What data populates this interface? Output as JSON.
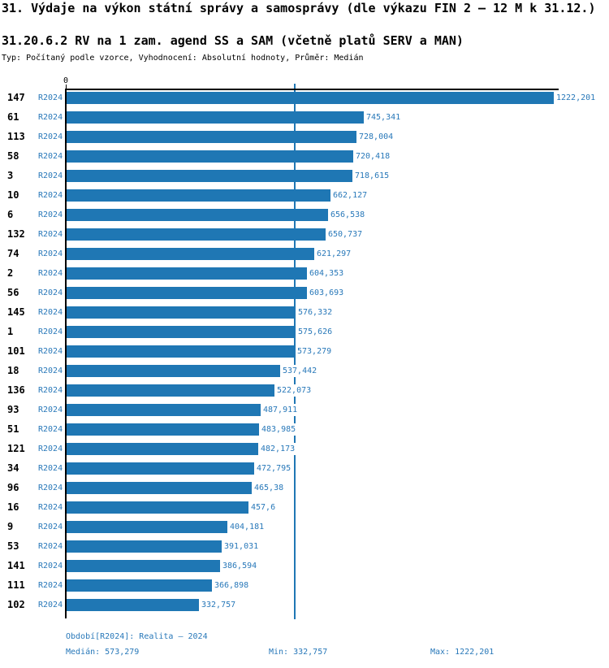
{
  "header": {
    "title": "31. Výdaje na výkon státní správy a samosprávy (dle výkazu FIN 2 – 12 M k 31.12.)",
    "subtitle": "31.20.6.2 RV na 1 zam. agend SS a SAM (včetně platů SERV a MAN)",
    "meta": "Typ: Počítaný podle vzorce, Vyhodnocení: Absolutní hodnoty, Průměr: Medián"
  },
  "chart_data": {
    "type": "bar",
    "orientation": "horizontal",
    "series_label": "R2024",
    "x_axis": {
      "zero_label": "0",
      "max": 1222.201
    },
    "median_value": 573.279,
    "legend_position": "none",
    "grid": false,
    "rows": [
      {
        "id": "147",
        "period": "R2024",
        "value": 1222.201,
        "value_label": "1222,201"
      },
      {
        "id": "61",
        "period": "R2024",
        "value": 745.341,
        "value_label": "745,341"
      },
      {
        "id": "113",
        "period": "R2024",
        "value": 728.004,
        "value_label": "728,004"
      },
      {
        "id": "58",
        "period": "R2024",
        "value": 720.418,
        "value_label": "720,418"
      },
      {
        "id": "3",
        "period": "R2024",
        "value": 718.615,
        "value_label": "718,615"
      },
      {
        "id": "10",
        "period": "R2024",
        "value": 662.127,
        "value_label": "662,127"
      },
      {
        "id": "6",
        "period": "R2024",
        "value": 656.538,
        "value_label": "656,538"
      },
      {
        "id": "132",
        "period": "R2024",
        "value": 650.737,
        "value_label": "650,737"
      },
      {
        "id": "74",
        "period": "R2024",
        "value": 621.297,
        "value_label": "621,297"
      },
      {
        "id": "2",
        "period": "R2024",
        "value": 604.353,
        "value_label": "604,353"
      },
      {
        "id": "56",
        "period": "R2024",
        "value": 603.693,
        "value_label": "603,693"
      },
      {
        "id": "145",
        "period": "R2024",
        "value": 576.332,
        "value_label": "576,332"
      },
      {
        "id": "1",
        "period": "R2024",
        "value": 575.626,
        "value_label": "575,626"
      },
      {
        "id": "101",
        "period": "R2024",
        "value": 573.279,
        "value_label": "573,279"
      },
      {
        "id": "18",
        "period": "R2024",
        "value": 537.442,
        "value_label": "537,442"
      },
      {
        "id": "136",
        "period": "R2024",
        "value": 522.073,
        "value_label": "522,073"
      },
      {
        "id": "93",
        "period": "R2024",
        "value": 487.911,
        "value_label": "487,911"
      },
      {
        "id": "51",
        "period": "R2024",
        "value": 483.985,
        "value_label": "483,985"
      },
      {
        "id": "121",
        "period": "R2024",
        "value": 482.173,
        "value_label": "482,173"
      },
      {
        "id": "34",
        "period": "R2024",
        "value": 472.795,
        "value_label": "472,795"
      },
      {
        "id": "96",
        "period": "R2024",
        "value": 465.38,
        "value_label": "465,38"
      },
      {
        "id": "16",
        "period": "R2024",
        "value": 457.6,
        "value_label": "457,6"
      },
      {
        "id": "9",
        "period": "R2024",
        "value": 404.181,
        "value_label": "404,181"
      },
      {
        "id": "53",
        "period": "R2024",
        "value": 391.031,
        "value_label": "391,031"
      },
      {
        "id": "141",
        "period": "R2024",
        "value": 386.594,
        "value_label": "386,594"
      },
      {
        "id": "111",
        "period": "R2024",
        "value": 366.898,
        "value_label": "366,898"
      },
      {
        "id": "102",
        "period": "R2024",
        "value": 332.757,
        "value_label": "332,757"
      }
    ]
  },
  "footer": {
    "period": "Období[R2024]: Realita – 2024",
    "median": "Medián: 573,279",
    "min": "Min: 332,757",
    "max": "Max: 1222,201"
  },
  "colors": {
    "bar": "#1f77b4",
    "blue_text": "#2878b9",
    "axis": "#000000"
  }
}
